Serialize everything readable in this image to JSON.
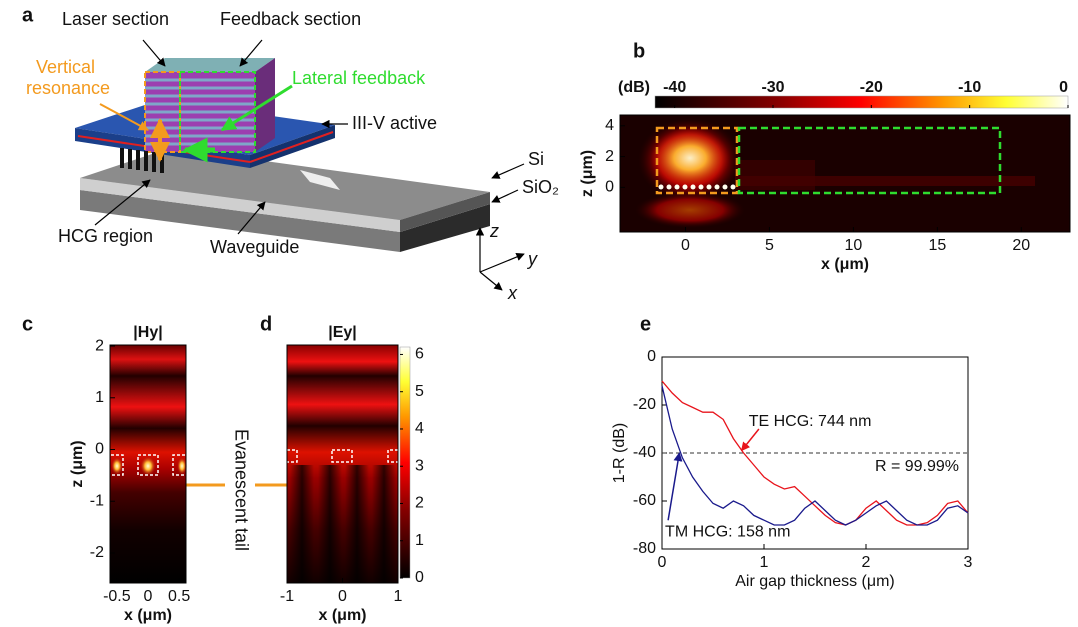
{
  "figure": {
    "panel_a": {
      "label": "a",
      "laser_section": "Laser section",
      "feedback_section": "Feedback section",
      "vertical_resonance": [
        "Vertical",
        "resonance"
      ],
      "lateral_feedback": "Lateral feedback",
      "active": "III-V active",
      "si": "Si",
      "sio2": "SiO₂",
      "hcg_region": "HCG region",
      "waveguide": "Waveguide",
      "axes": [
        "z",
        "y",
        "x"
      ]
    },
    "evanescent_tail": "Evanescent tail"
  },
  "chart_data": [
    {
      "type": "heatmap",
      "panel": "b",
      "xlabel": "x (μm)",
      "ylabel": "z (μm)",
      "xlim": [
        -3.9,
        22.9
      ],
      "xticks": [
        0,
        5,
        10,
        15,
        20
      ],
      "ylim": [
        -2.9,
        4.7
      ],
      "yticks": [
        0,
        2,
        4
      ],
      "colorbar": {
        "label": "(dB)",
        "lim": [
          -42,
          0
        ],
        "ticks": [
          -40,
          -30,
          -20,
          -10,
          0
        ],
        "orientation": "horizontal"
      }
    },
    {
      "type": "heatmap",
      "panel": "c",
      "title": "|Hy|",
      "xlabel": "x (μm)",
      "ylabel": "z (μm)",
      "xlim": [
        -0.61,
        0.61
      ],
      "xticks": [
        -0.5,
        0,
        0.5
      ],
      "ylim": [
        -2.58,
        2.02
      ],
      "yticks": [
        -2,
        -1,
        0,
        1,
        2
      ]
    },
    {
      "type": "heatmap",
      "panel": "d",
      "title": "|Ey|",
      "xlabel": "x (μm)",
      "xlim": [
        -1,
        1
      ],
      "xticks": [
        -1,
        0,
        1
      ],
      "ylim": [
        -2.58,
        2.02
      ],
      "colorbar": {
        "lim": [
          0,
          6.2
        ],
        "ticks": [
          0,
          1,
          2,
          3,
          4,
          5,
          6
        ],
        "orientation": "vertical"
      }
    },
    {
      "type": "line",
      "panel": "e",
      "xlabel": "Air gap thickness (μm)",
      "ylabel": "1-R (dB)",
      "x": [
        0,
        0.1,
        0.2,
        0.3,
        0.4,
        0.5,
        0.6,
        0.7,
        0.8,
        0.9,
        1.0,
        1.1,
        1.2,
        1.3,
        1.4,
        1.5,
        1.6,
        1.7,
        1.8,
        1.9,
        2.0,
        2.1,
        2.2,
        2.3,
        2.4,
        2.5,
        2.6,
        2.7,
        2.8,
        2.9,
        3.0
      ],
      "xlim": [
        0,
        3
      ],
      "xticks": [
        0,
        1,
        2,
        3
      ],
      "ylim": [
        -80,
        0
      ],
      "yticks": [
        0,
        -20,
        -40,
        -60,
        -80
      ],
      "series": [
        {
          "name": "TE HCG: 744 nm",
          "color": "#e8141c",
          "values": [
            -10,
            -15,
            -19,
            -21,
            -23,
            -23,
            -26,
            -34,
            -40,
            -45,
            -50,
            -53,
            -55,
            -54,
            -58,
            -62,
            -66,
            -69,
            -70,
            -68,
            -63,
            -60,
            -64,
            -68,
            -70,
            -70,
            -69,
            -66,
            -61,
            -60,
            -65
          ]
        },
        {
          "name": "TM HCG: 158 nm",
          "color": "#1a1a8c",
          "values": [
            -12,
            -30,
            -42,
            -50,
            -56,
            -61,
            -63,
            -60,
            -62,
            -66,
            -68,
            -70,
            -70,
            -68,
            -63,
            -60,
            -64,
            -68,
            -70,
            -68,
            -65,
            -62,
            -60,
            -64,
            -68,
            -70,
            -70,
            -68,
            -63,
            -62,
            -65
          ]
        }
      ],
      "reference_line": {
        "value": -40,
        "label": "R = 99.99%"
      }
    }
  ]
}
